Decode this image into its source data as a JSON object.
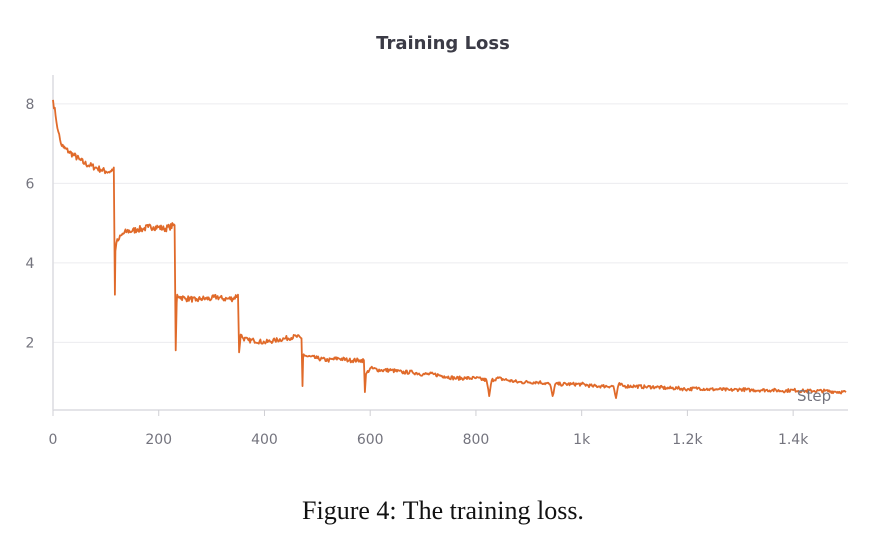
{
  "chart_data": {
    "type": "line",
    "title": "Training Loss",
    "xlabel": "Step",
    "ylabel": "",
    "xlim": [
      0,
      1500
    ],
    "ylim": [
      0.3,
      8.6
    ],
    "x_ticks": [
      0,
      200,
      400,
      600,
      800,
      1000,
      1200,
      1400
    ],
    "x_tick_labels": [
      "0",
      "200",
      "400",
      "600",
      "800",
      "1k",
      "1.2k",
      "1.4k"
    ],
    "y_ticks": [
      2,
      4,
      6,
      8
    ],
    "y_tick_labels": [
      "2",
      "4",
      "6",
      "8"
    ],
    "grid": true,
    "line_color": "#e06a2a",
    "series": [
      {
        "x": [
          0,
          5,
          10,
          15,
          20,
          30,
          40,
          50,
          60,
          70,
          80,
          90,
          100,
          110,
          115,
          117,
          118,
          120,
          125,
          130,
          140,
          150,
          160,
          170,
          180,
          190,
          200,
          210,
          220,
          230,
          232,
          234,
          235,
          240,
          250,
          260,
          270,
          280,
          290,
          300,
          310,
          320,
          330,
          340,
          350,
          352,
          354,
          355,
          360,
          370,
          380,
          400,
          420,
          440,
          460,
          470,
          472,
          473,
          474,
          480,
          500,
          520,
          540,
          560,
          580,
          588,
          590,
          592,
          600,
          620,
          640,
          660,
          680,
          700,
          720,
          740,
          760,
          780,
          800,
          820,
          825,
          830,
          840,
          860,
          880,
          900,
          920,
          940,
          945,
          950,
          960,
          980,
          1000,
          1020,
          1040,
          1060,
          1065,
          1070,
          1080,
          1100,
          1120,
          1140,
          1160,
          1180,
          1200,
          1220,
          1240,
          1260,
          1280,
          1300,
          1320,
          1340,
          1360,
          1380,
          1400,
          1420,
          1440,
          1460,
          1480,
          1500
        ],
        "y": [
          8.1,
          7.7,
          7.3,
          7.0,
          6.9,
          6.8,
          6.7,
          6.6,
          6.5,
          6.45,
          6.4,
          6.35,
          6.3,
          6.3,
          6.4,
          3.2,
          4.3,
          4.5,
          4.6,
          4.7,
          4.8,
          4.8,
          4.85,
          4.85,
          4.9,
          4.9,
          4.9,
          4.85,
          4.9,
          4.95,
          1.8,
          3.0,
          3.2,
          3.15,
          3.1,
          3.1,
          3.05,
          3.1,
          3.1,
          3.1,
          3.15,
          3.1,
          3.1,
          3.1,
          3.2,
          1.75,
          2.0,
          2.2,
          2.1,
          2.05,
          2.05,
          2.0,
          2.05,
          2.1,
          2.15,
          2.1,
          0.9,
          1.6,
          1.7,
          1.65,
          1.6,
          1.55,
          1.6,
          1.55,
          1.55,
          1.55,
          0.75,
          1.2,
          1.35,
          1.3,
          1.3,
          1.25,
          1.25,
          1.2,
          1.2,
          1.15,
          1.1,
          1.1,
          1.1,
          1.05,
          0.65,
          1.05,
          1.1,
          1.05,
          1.0,
          1.0,
          1.0,
          0.95,
          0.65,
          0.95,
          0.95,
          0.95,
          0.95,
          0.9,
          0.9,
          0.9,
          0.6,
          0.95,
          0.9,
          0.9,
          0.88,
          0.88,
          0.85,
          0.85,
          0.82,
          0.85,
          0.82,
          0.82,
          0.8,
          0.82,
          0.8,
          0.8,
          0.8,
          0.78,
          0.8,
          0.78,
          0.78,
          0.78,
          0.76,
          0.75
        ]
      }
    ]
  },
  "caption": "Figure 4: The training loss."
}
